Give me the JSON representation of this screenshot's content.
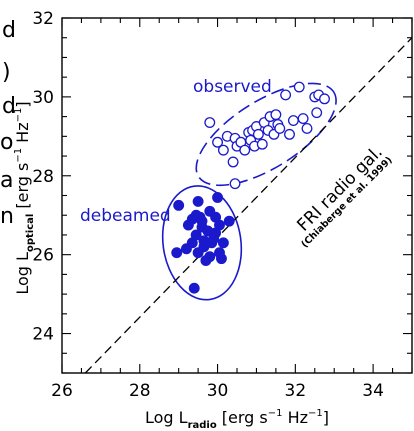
{
  "side_text": [
    "d",
    ")",
    "d",
    "o",
    "a",
    "n"
  ],
  "chart_data": {
    "type": "scatter",
    "xlabel_main": "Log L",
    "xlabel_sub": "radio",
    "xlabel_unit": "[erg s",
    "xlabel_unit_exp": "−1",
    "xlabel_unit_mid": " Hz",
    "xlabel_unit_exp2": "−1",
    "xlabel_unit_end": "]",
    "ylabel_main": "Log L",
    "ylabel_sub": "optical",
    "ylabel_unit": "[erg s",
    "ylabel_unit_exp": "−1",
    "ylabel_unit_mid": " Hz",
    "ylabel_unit_exp2": "−1",
    "ylabel_unit_end": "]",
    "xlim": [
      26,
      35
    ],
    "ylim": [
      23,
      32
    ],
    "xticks": [
      26,
      28,
      30,
      32,
      34
    ],
    "yticks": [
      24,
      26,
      28,
      30,
      32
    ],
    "grid": false,
    "colors": {
      "data": "#1a1acc",
      "line": "#000000",
      "axis": "#000000"
    },
    "series": [
      {
        "name": "observed",
        "marker": "open-circle",
        "points": [
          [
            29.8,
            29.35
          ],
          [
            30.0,
            28.85
          ],
          [
            30.15,
            28.65
          ],
          [
            30.25,
            29.0
          ],
          [
            30.4,
            28.35
          ],
          [
            30.45,
            28.95
          ],
          [
            30.5,
            28.75
          ],
          [
            30.6,
            28.85
          ],
          [
            30.7,
            28.65
          ],
          [
            30.8,
            29.1
          ],
          [
            30.85,
            28.9
          ],
          [
            30.9,
            29.15
          ],
          [
            30.95,
            28.75
          ],
          [
            31.0,
            29.25
          ],
          [
            31.05,
            29.05
          ],
          [
            31.15,
            28.8
          ],
          [
            31.2,
            29.35
          ],
          [
            31.3,
            29.15
          ],
          [
            31.35,
            29.5
          ],
          [
            31.45,
            29.05
          ],
          [
            31.5,
            29.55
          ],
          [
            31.55,
            29.3
          ],
          [
            31.6,
            29.2
          ],
          [
            31.75,
            30.05
          ],
          [
            31.85,
            29.05
          ],
          [
            31.95,
            29.4
          ],
          [
            32.1,
            30.25
          ],
          [
            32.2,
            29.45
          ],
          [
            32.3,
            29.2
          ],
          [
            32.5,
            30.0
          ],
          [
            32.55,
            29.6
          ],
          [
            32.6,
            30.05
          ],
          [
            32.75,
            29.95
          ],
          [
            30.45,
            27.8
          ]
        ]
      },
      {
        "name": "debeamed",
        "marker": "filled-circle",
        "points": [
          [
            29.0,
            27.25
          ],
          [
            29.25,
            26.75
          ],
          [
            29.35,
            26.9
          ],
          [
            29.45,
            26.5
          ],
          [
            29.55,
            26.95
          ],
          [
            29.6,
            26.7
          ],
          [
            29.65,
            26.35
          ],
          [
            29.75,
            26.6
          ],
          [
            29.8,
            27.1
          ],
          [
            29.85,
            26.3
          ],
          [
            29.95,
            26.55
          ],
          [
            30.05,
            26.75
          ],
          [
            29.2,
            26.15
          ],
          [
            29.35,
            26.3
          ],
          [
            29.5,
            26.05
          ],
          [
            29.65,
            26.2
          ],
          [
            29.8,
            25.95
          ],
          [
            29.9,
            26.4
          ],
          [
            30.05,
            26.05
          ],
          [
            30.15,
            26.3
          ],
          [
            30.0,
            27.45
          ],
          [
            29.5,
            27.35
          ],
          [
            28.95,
            26.05
          ],
          [
            29.7,
            25.85
          ],
          [
            30.3,
            26.85
          ],
          [
            30.1,
            25.9
          ],
          [
            29.4,
            25.15
          ],
          [
            29.6,
            26.85
          ],
          [
            29.45,
            27.0
          ],
          [
            29.95,
            26.95
          ]
        ]
      }
    ],
    "ellipses": [
      {
        "name": "observed",
        "cx": 31.25,
        "cy": 29.05,
        "rx": 2.05,
        "ry": 0.85,
        "angle_deg": -32,
        "style": "dashed"
      },
      {
        "name": "debeamed",
        "cx": 29.6,
        "cy": 26.3,
        "rx": 1.0,
        "ry": 1.45,
        "angle_deg": -8,
        "style": "solid"
      }
    ],
    "reference_line": {
      "name": "FRI radio gal.",
      "citation": "(Chiaberge et al. 1999)",
      "style": "dashed",
      "points": [
        [
          26.6,
          23.0
        ],
        [
          35.0,
          31.5
        ]
      ]
    },
    "annotations": {
      "observed_label": "observed",
      "debeamed_label": "debeamed",
      "line_label": "FRI radio gal.",
      "line_citation": "(Chiaberge et al. 1999)"
    }
  }
}
